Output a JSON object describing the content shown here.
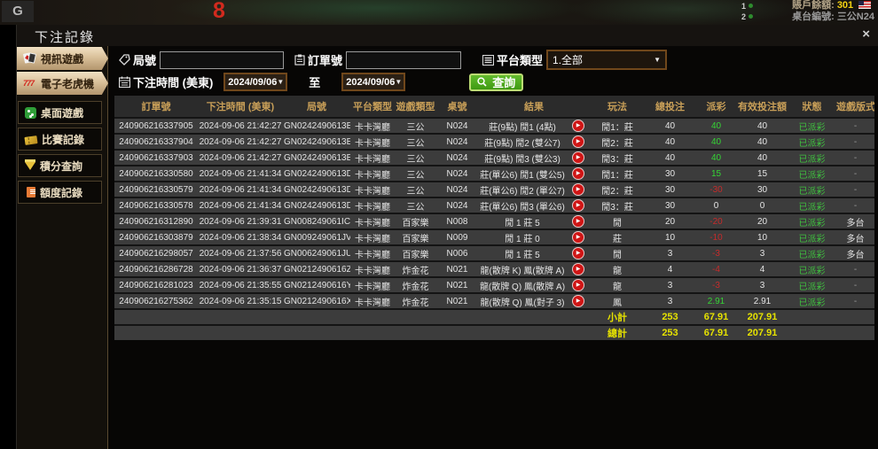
{
  "background": {
    "logo": "G",
    "big_number": "8",
    "rank_list": [
      "1",
      "2"
    ],
    "balance_label": "賬戶餘額:",
    "balance_value": "301",
    "table_label": "桌台編號:",
    "table_value": "三公N24"
  },
  "modal": {
    "title": "下注記錄",
    "close_label": "×"
  },
  "sidebar": {
    "items": [
      {
        "label": "視訊遊戲"
      },
      {
        "label": "電子老虎機"
      },
      {
        "label": "桌面遊戲"
      },
      {
        "label": "比賽記錄"
      },
      {
        "label": "積分查詢"
      },
      {
        "label": "額度記錄"
      }
    ]
  },
  "filters": {
    "round_label": "局號",
    "round_value": "",
    "order_label": "訂單號",
    "order_value": "",
    "platform_label": "平台類型",
    "platform_value": "1.全部",
    "time_label": "下注時間 (美東)",
    "date_from": "2024/09/06",
    "to_label": "至",
    "date_to": "2024/09/06",
    "search_label": "查詢",
    "chevron": "▼"
  },
  "table": {
    "headers": [
      "訂單號",
      "下注時間 (美東)",
      "局號",
      "平台類型",
      "遊戲類型",
      "桌號",
      "結果",
      "玩法",
      "總投注",
      "派彩",
      "有效投注額",
      "狀態",
      "遊戲版式"
    ],
    "rows": [
      {
        "order": "240906216337905",
        "time": "2024-09-06 21:42:27",
        "round": "GN0242490613E",
        "platform": "卡卡灣廳",
        "game": "三公",
        "table_no": "N024",
        "result": "莊(9點) 閒1 (4點)",
        "play": "閒1：莊",
        "bet": "40",
        "payout": "40",
        "valid": "40",
        "status": "已派彩",
        "mode": "-"
      },
      {
        "order": "240906216337904",
        "time": "2024-09-06 21:42:27",
        "round": "GN0242490613E",
        "platform": "卡卡灣廳",
        "game": "三公",
        "table_no": "N024",
        "result": "莊(9點) 閒2 (雙公7)",
        "play": "閒2：莊",
        "bet": "40",
        "payout": "40",
        "valid": "40",
        "status": "已派彩",
        "mode": "-"
      },
      {
        "order": "240906216337903",
        "time": "2024-09-06 21:42:27",
        "round": "GN0242490613E",
        "platform": "卡卡灣廳",
        "game": "三公",
        "table_no": "N024",
        "result": "莊(9點) 閒3 (雙公3)",
        "play": "閒3：莊",
        "bet": "40",
        "payout": "40",
        "valid": "40",
        "status": "已派彩",
        "mode": "-"
      },
      {
        "order": "240906216330580",
        "time": "2024-09-06 21:41:34",
        "round": "GN0242490613D",
        "platform": "卡卡灣廳",
        "game": "三公",
        "table_no": "N024",
        "result": "莊(單公6) 閒1 (雙公5)",
        "play": "閒1：莊",
        "bet": "30",
        "payout": "15",
        "valid": "15",
        "status": "已派彩",
        "mode": "-"
      },
      {
        "order": "240906216330579",
        "time": "2024-09-06 21:41:34",
        "round": "GN0242490613D",
        "platform": "卡卡灣廳",
        "game": "三公",
        "table_no": "N024",
        "result": "莊(單公6) 閒2 (單公7)",
        "play": "閒2：莊",
        "bet": "30",
        "payout": "-30",
        "valid": "30",
        "status": "已派彩",
        "mode": "-"
      },
      {
        "order": "240906216330578",
        "time": "2024-09-06 21:41:34",
        "round": "GN0242490613D",
        "platform": "卡卡灣廳",
        "game": "三公",
        "table_no": "N024",
        "result": "莊(單公6) 閒3 (單公6)",
        "play": "閒3：莊",
        "bet": "30",
        "payout": "0",
        "valid": "0",
        "status": "已派彩",
        "mode": "-"
      },
      {
        "order": "240906216312890",
        "time": "2024-09-06 21:39:31",
        "round": "GN008249061IC",
        "platform": "卡卡灣廳",
        "game": "百家樂",
        "table_no": "N008",
        "result": "閒 1 莊 5",
        "play": "閒",
        "bet": "20",
        "payout": "-20",
        "valid": "20",
        "status": "已派彩",
        "mode": "多台"
      },
      {
        "order": "240906216303879",
        "time": "2024-09-06 21:38:34",
        "round": "GN009249061JV",
        "platform": "卡卡灣廳",
        "game": "百家樂",
        "table_no": "N009",
        "result": "閒 1 莊 0",
        "play": "莊",
        "bet": "10",
        "payout": "-10",
        "valid": "10",
        "status": "已派彩",
        "mode": "多台"
      },
      {
        "order": "240906216298057",
        "time": "2024-09-06 21:37:56",
        "round": "GN006249061JU",
        "platform": "卡卡灣廳",
        "game": "百家樂",
        "table_no": "N006",
        "result": "閒 1 莊 5",
        "play": "閒",
        "bet": "3",
        "payout": "-3",
        "valid": "3",
        "status": "已派彩",
        "mode": "多台"
      },
      {
        "order": "240906216286728",
        "time": "2024-09-06 21:36:37",
        "round": "GN0212490616Z",
        "platform": "卡卡灣廳",
        "game": "炸金花",
        "table_no": "N021",
        "result": "龍(散牌 K) 鳳(散牌 A)",
        "play": "龍",
        "bet": "4",
        "payout": "-4",
        "valid": "4",
        "status": "已派彩",
        "mode": "-"
      },
      {
        "order": "240906216281023",
        "time": "2024-09-06 21:35:55",
        "round": "GN0212490616Y",
        "platform": "卡卡灣廳",
        "game": "炸金花",
        "table_no": "N021",
        "result": "龍(散牌 Q) 鳳(散牌 A)",
        "play": "龍",
        "bet": "3",
        "payout": "-3",
        "valid": "3",
        "status": "已派彩",
        "mode": "-"
      },
      {
        "order": "240906216275362",
        "time": "2024-09-06 21:35:15",
        "round": "GN0212490616X",
        "platform": "卡卡灣廳",
        "game": "炸金花",
        "table_no": "N021",
        "result": "龍(散牌 Q) 鳳(對子 3)",
        "play": "鳳",
        "bet": "3",
        "payout": "2.91",
        "valid": "2.91",
        "status": "已派彩",
        "mode": "-"
      }
    ],
    "subtotal": {
      "label": "小計",
      "bet": "253",
      "payout": "67.91",
      "valid": "207.91"
    },
    "total": {
      "label": "總計",
      "bet": "253",
      "payout": "67.91",
      "valid": "207.91"
    }
  },
  "colors": {
    "header_gold": "#c89f58",
    "positive_green": "#35d435",
    "negative_red": "#c62b2b",
    "paid_green": "#3fc13f",
    "summary_yellow": "#e6e200",
    "search_button_green": "#3f9a12"
  }
}
